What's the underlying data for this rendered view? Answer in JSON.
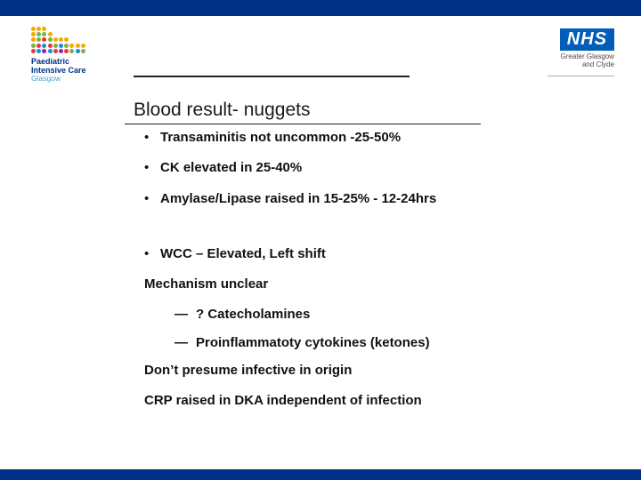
{
  "colors": {
    "brand_navy": "#003087",
    "nhs_blue": "#005EB8",
    "text": "#111111",
    "divider": "#222222"
  },
  "logo_left": {
    "line1": "Paediatric",
    "line2": "Intensive Care",
    "line3": "Glasgow",
    "dot_rows": [
      [
        "#f7a800",
        "#f7a800",
        "#f7a800",
        "",
        "",
        "",
        "",
        "",
        "",
        ""
      ],
      [
        "#f7a800",
        "#7cb342",
        "#7cb342",
        "#f7a800",
        "",
        "",
        "",
        "",
        "",
        ""
      ],
      [
        "#f7a800",
        "#7cb342",
        "#e53935",
        "#7cb342",
        "#f7a800",
        "#f7a800",
        "#f7a800",
        "",
        "",
        ""
      ],
      [
        "#7cb342",
        "#e53935",
        "#1e88e5",
        "#e53935",
        "#7cb342",
        "#1e88e5",
        "#7cb342",
        "#f7a800",
        "#f7a800",
        "#f7a800"
      ],
      [
        "#e53935",
        "#1e88e5",
        "#8e24aa",
        "#1e88e5",
        "#e53935",
        "#8e24aa",
        "#e53935",
        "#7cb342",
        "#1e88e5",
        "#7cb342"
      ]
    ]
  },
  "logo_right": {
    "nhs": "NHS",
    "sub1": "Greater Glasgow",
    "sub2": "and Clyde"
  },
  "title": "Blood result- nuggets",
  "bullets_top": [
    "Transaminitis not uncommon -25-50%",
    "CK elevated in 25-40%",
    "Amylase/Lipase raised in 15-25% - 12-24hrs"
  ],
  "bullets_mid": [
    "WCC – Elevated, Left shift"
  ],
  "plain1": "Mechanism unclear",
  "dashes": [
    "? Catecholamines",
    "Proinflammatoty cytokines (ketones)"
  ],
  "plain2": "Don’t presume infective in origin",
  "plain3": "CRP raised in DKA independent of infection"
}
